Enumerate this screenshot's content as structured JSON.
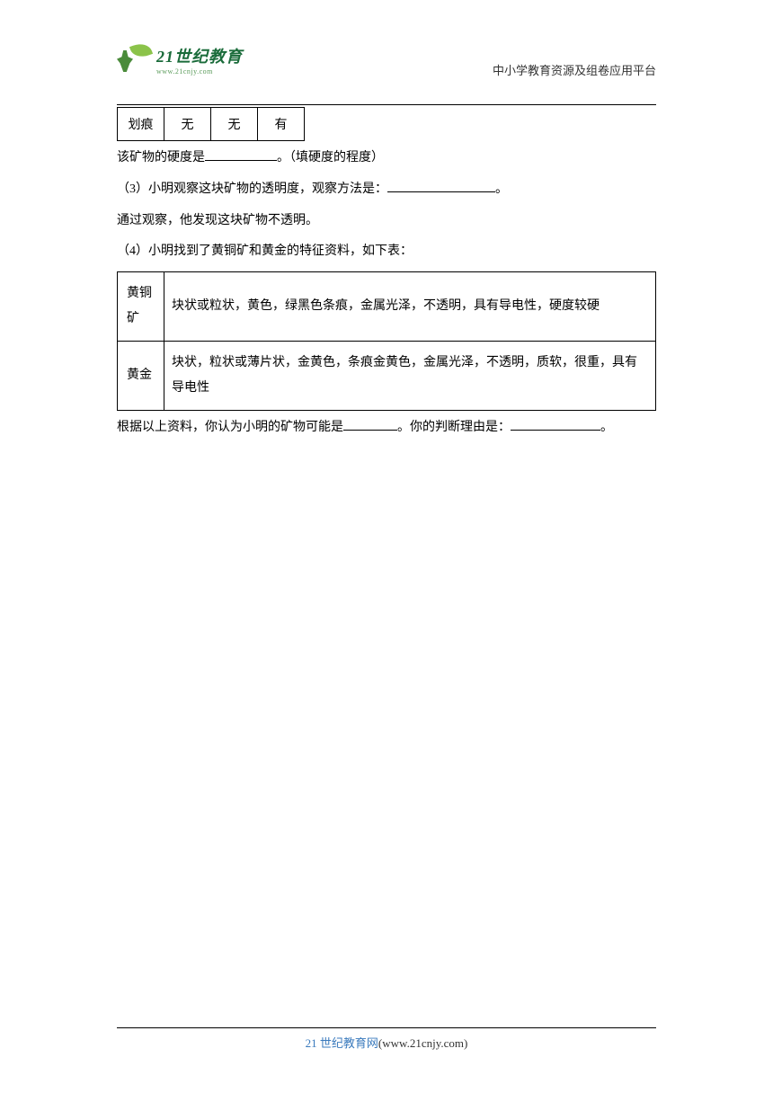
{
  "header": {
    "logo_main": "21世纪教育",
    "logo_sub": "www.21cnjy.com",
    "right_text": "中小学教育资源及组卷应用平台"
  },
  "table1": {
    "row": [
      "划痕",
      "无",
      "无",
      "有"
    ]
  },
  "body": {
    "p1_a": "该矿物的硬度是",
    "p1_b": "。（填硬度的程度）",
    "p2_a": "（3）小明观察这块矿物的透明度，观察方法是：",
    "p2_b": "。",
    "p3": "通过观察，他发现这块矿物不透明。",
    "p4": "（4）小明找到了黄铜矿和黄金的特征资料，如下表：",
    "p5_a": "根据以上资料，你认为小明的矿物可能是",
    "p5_b": "。你的判断理由是：",
    "p5_c": "。"
  },
  "table2": {
    "rows": [
      {
        "label": "黄铜矿",
        "desc": "块状或粒状，黄色，绿黑色条痕，金属光泽，不透明，具有导电性，硬度较硬"
      },
      {
        "label": "黄金",
        "desc": "块状，粒状或薄片状，金黄色，条痕金黄色，金属光泽，不透明，质软，很重，具有导电性"
      }
    ]
  },
  "footer": {
    "brand": "21 世纪教育网",
    "url": "(www.21cnjy.com)"
  },
  "colors": {
    "text": "#000000",
    "footer_blue": "#3a7abd",
    "logo_green_dark": "#1a6b3a",
    "logo_green_light": "#8bc34a",
    "background": "#ffffff"
  }
}
